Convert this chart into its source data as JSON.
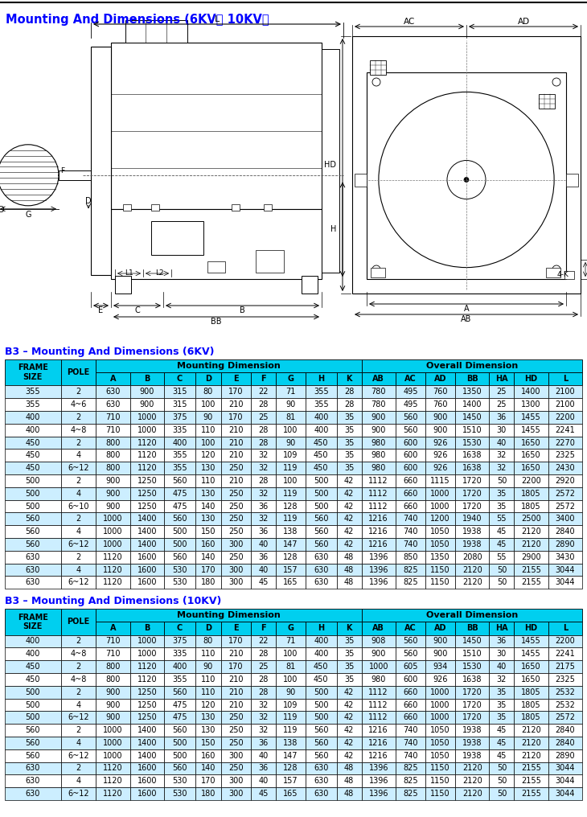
{
  "title": "Mounting And Dimensions (6KV、 10KV）",
  "title_color": "#0000FF",
  "section1_title": "B3 – Mounting And Dimensions (6KV)",
  "section2_title": "B3 – Mounting And Dimensions (10KV)",
  "header_bg": "#00CFEF",
  "col_headers": [
    "FRAME\nSIZE",
    "POLE",
    "A",
    "B",
    "C",
    "D",
    "E",
    "F",
    "G",
    "H",
    "K",
    "AB",
    "AC",
    "AD",
    "BB",
    "HA",
    "HD",
    "L"
  ],
  "data_6kv": [
    [
      355,
      2,
      630,
      900,
      315,
      80,
      170,
      22,
      71,
      355,
      28,
      780,
      495,
      760,
      1350,
      25,
      1400,
      2100
    ],
    [
      355,
      "4~6",
      630,
      900,
      315,
      100,
      210,
      28,
      90,
      355,
      28,
      780,
      495,
      760,
      1400,
      25,
      1300,
      2100
    ],
    [
      400,
      2,
      710,
      1000,
      375,
      90,
      170,
      25,
      81,
      400,
      35,
      900,
      560,
      900,
      1450,
      36,
      1455,
      2200
    ],
    [
      400,
      "4~8",
      710,
      1000,
      335,
      110,
      210,
      28,
      100,
      400,
      35,
      900,
      560,
      900,
      1510,
      30,
      1455,
      2241
    ],
    [
      450,
      2,
      800,
      1120,
      400,
      100,
      210,
      28,
      90,
      450,
      35,
      980,
      600,
      926,
      1530,
      40,
      1650,
      2270
    ],
    [
      450,
      4,
      800,
      1120,
      355,
      120,
      210,
      32,
      109,
      450,
      35,
      980,
      600,
      926,
      1638,
      32,
      1650,
      2325
    ],
    [
      450,
      "6~12",
      800,
      1120,
      355,
      130,
      250,
      32,
      119,
      450,
      35,
      980,
      600,
      926,
      1638,
      32,
      1650,
      2430
    ],
    [
      500,
      2,
      900,
      1250,
      560,
      110,
      210,
      28,
      100,
      500,
      42,
      1112,
      660,
      1115,
      1720,
      50,
      2200,
      2920
    ],
    [
      500,
      4,
      900,
      1250,
      475,
      130,
      250,
      32,
      119,
      500,
      42,
      1112,
      660,
      1000,
      1720,
      35,
      1805,
      2572
    ],
    [
      500,
      "6~10",
      900,
      1250,
      475,
      140,
      250,
      36,
      128,
      500,
      42,
      1112,
      660,
      1000,
      1720,
      35,
      1805,
      2572
    ],
    [
      560,
      2,
      1000,
      1400,
      560,
      130,
      250,
      32,
      119,
      560,
      42,
      1216,
      740,
      1200,
      1940,
      55,
      2500,
      3400
    ],
    [
      560,
      4,
      1000,
      1400,
      500,
      150,
      250,
      36,
      138,
      560,
      42,
      1216,
      740,
      1050,
      1938,
      45,
      2120,
      2840
    ],
    [
      560,
      "6~12",
      1000,
      1400,
      500,
      160,
      300,
      40,
      147,
      560,
      42,
      1216,
      740,
      1050,
      1938,
      45,
      2120,
      2890
    ],
    [
      630,
      2,
      1120,
      1600,
      560,
      140,
      250,
      36,
      128,
      630,
      48,
      1396,
      850,
      1350,
      2080,
      55,
      2900,
      3430
    ],
    [
      630,
      4,
      1120,
      1600,
      530,
      170,
      300,
      40,
      157,
      630,
      48,
      1396,
      825,
      1150,
      2120,
      50,
      2155,
      3044
    ],
    [
      630,
      "6~12",
      1120,
      1600,
      530,
      180,
      300,
      45,
      165,
      630,
      48,
      1396,
      825,
      1150,
      2120,
      50,
      2155,
      3044
    ]
  ],
  "data_10kv": [
    [
      400,
      2,
      710,
      1000,
      375,
      80,
      170,
      22,
      71,
      400,
      35,
      908,
      560,
      900,
      1450,
      36,
      1455,
      2200
    ],
    [
      400,
      "4~8",
      710,
      1000,
      335,
      110,
      210,
      28,
      100,
      400,
      35,
      900,
      560,
      900,
      1510,
      30,
      1455,
      2241
    ],
    [
      450,
      2,
      800,
      1120,
      400,
      90,
      170,
      25,
      81,
      450,
      35,
      1000,
      605,
      934,
      1530,
      40,
      1650,
      2175
    ],
    [
      450,
      "4~8",
      800,
      1120,
      355,
      110,
      210,
      28,
      100,
      450,
      35,
      980,
      600,
      926,
      1638,
      32,
      1650,
      2325
    ],
    [
      500,
      2,
      900,
      1250,
      560,
      110,
      210,
      28,
      90,
      500,
      42,
      1112,
      660,
      1000,
      1720,
      35,
      1805,
      2532
    ],
    [
      500,
      4,
      900,
      1250,
      475,
      120,
      210,
      32,
      109,
      500,
      42,
      1112,
      660,
      1000,
      1720,
      35,
      1805,
      2532
    ],
    [
      500,
      "6~12",
      900,
      1250,
      475,
      130,
      250,
      32,
      119,
      500,
      42,
      1112,
      660,
      1000,
      1720,
      35,
      1805,
      2572
    ],
    [
      560,
      2,
      1000,
      1400,
      560,
      130,
      250,
      32,
      119,
      560,
      42,
      1216,
      740,
      1050,
      1938,
      45,
      2120,
      2840
    ],
    [
      560,
      4,
      1000,
      1400,
      500,
      150,
      250,
      36,
      138,
      560,
      42,
      1216,
      740,
      1050,
      1938,
      45,
      2120,
      2840
    ],
    [
      560,
      "6~12",
      1000,
      1400,
      500,
      160,
      300,
      40,
      147,
      560,
      42,
      1216,
      740,
      1050,
      1938,
      45,
      2120,
      2890
    ],
    [
      630,
      2,
      1120,
      1600,
      560,
      140,
      250,
      36,
      128,
      630,
      48,
      1396,
      825,
      1150,
      2120,
      50,
      2155,
      3044
    ],
    [
      630,
      4,
      1120,
      1600,
      530,
      170,
      300,
      40,
      157,
      630,
      48,
      1396,
      825,
      1150,
      2120,
      50,
      2155,
      3044
    ],
    [
      630,
      "6~12",
      1120,
      1600,
      530,
      180,
      300,
      45,
      165,
      630,
      48,
      1396,
      825,
      1150,
      2120,
      50,
      2155,
      3044
    ]
  ]
}
